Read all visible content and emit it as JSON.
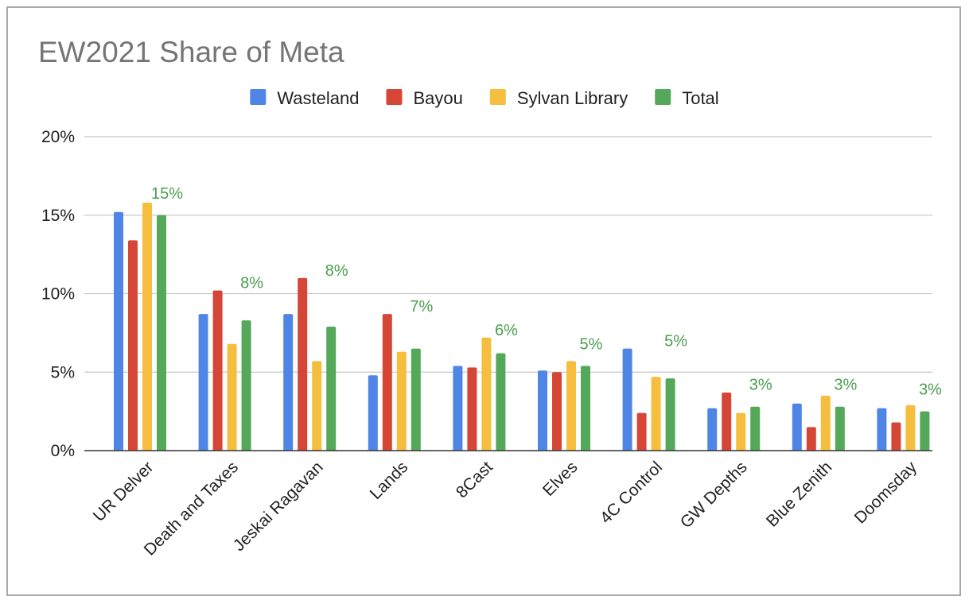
{
  "chart_data": {
    "type": "bar",
    "title": "EW2021 Share of Meta",
    "xlabel": "",
    "ylabel": "",
    "ylim": [
      0,
      20
    ],
    "yticks": [
      "0%",
      "5%",
      "10%",
      "15%",
      "20%"
    ],
    "ytick_values": [
      0,
      5,
      10,
      15,
      20
    ],
    "grid": true,
    "legend": "top",
    "categories": [
      "UR Delver",
      "Death and Taxes",
      "Jeskai Ragavan",
      "Lands",
      "8Cast",
      "Elves",
      "4C Control",
      "GW Depths",
      "Blue Zenith",
      "Doomsday"
    ],
    "series": [
      {
        "name": "Wasteland",
        "color": "#4f86e6",
        "values": [
          15.2,
          8.7,
          8.7,
          4.8,
          5.4,
          5.1,
          6.5,
          2.7,
          3.0,
          2.7
        ]
      },
      {
        "name": "Bayou",
        "color": "#d64637",
        "values": [
          13.4,
          10.2,
          11.0,
          8.7,
          5.3,
          5.0,
          2.4,
          3.7,
          1.5,
          1.8
        ]
      },
      {
        "name": "Sylvan Library",
        "color": "#f5be3e",
        "values": [
          15.8,
          6.8,
          5.7,
          6.3,
          7.2,
          5.7,
          4.7,
          2.4,
          3.5,
          2.9
        ]
      },
      {
        "name": "Total",
        "color": "#55a85a",
        "values": [
          15.0,
          8.3,
          7.9,
          6.5,
          6.2,
          5.4,
          4.6,
          2.8,
          2.8,
          2.5
        ]
      }
    ],
    "data_labels": {
      "series": "Total",
      "color": "#4a9e4e",
      "labels": [
        "15%",
        "8%",
        "8%",
        "7%",
        "6%",
        "5%",
        "5%",
        "3%",
        "3%",
        "3%"
      ]
    },
    "colors": {
      "grid": "#c8c8c8",
      "baseline": "#333333",
      "title": "#757575",
      "border": "#a8a8a8"
    }
  }
}
